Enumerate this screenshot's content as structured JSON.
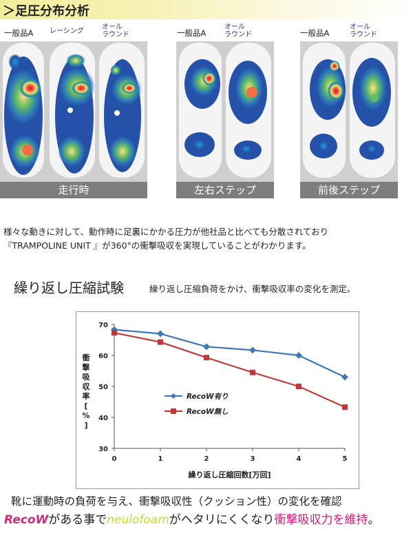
{
  "header": {
    "title": "＞足圧分布分析"
  },
  "panels": [
    {
      "labels": [
        "一般品A",
        "レーシング",
        "オール\nラウンド"
      ],
      "caption": "走行時"
    },
    {
      "labels": [
        "一般品A",
        "オール\nラウンド"
      ],
      "caption": "左右ステップ"
    },
    {
      "labels": [
        "一般品A",
        "オール\nラウンド"
      ],
      "caption": "前後ステップ"
    }
  ],
  "description": {
    "line1": "様々な動きに対して、動作時に足裏にかかる圧力が他社品と比べても分散されており",
    "line2": "『TRAMPOLINE UNIT 』が360°の衝撃吸収を実現していることがわかります。"
  },
  "test": {
    "title": "繰り返し圧縮試験",
    "description": "繰り返し圧縮負荷をかけ、衝撃吸収率の変化を測定。"
  },
  "chart_data": {
    "type": "line",
    "x": [
      0,
      1,
      2,
      3,
      4,
      5
    ],
    "xlabel": "繰り返し圧縮回数[万回]",
    "ylabel": "衝撃吸収率[%]",
    "ylim": [
      30,
      70
    ],
    "xlim": [
      0,
      5
    ],
    "yticks": [
      30,
      40,
      50,
      60,
      70
    ],
    "xticks": [
      0,
      1,
      2,
      3,
      4,
      5
    ],
    "grid": false,
    "legend_position": "lower-left",
    "series": [
      {
        "name": "RecoW有り",
        "values": [
          68.3,
          67.0,
          62.8,
          61.7,
          60.0,
          53.0
        ],
        "color": "#3f77ba",
        "marker": "diamond"
      },
      {
        "name": "RecoW無し",
        "values": [
          67.3,
          64.3,
          59.3,
          54.5,
          50.0,
          43.3
        ],
        "color": "#c0393b",
        "marker": "square"
      }
    ]
  },
  "conclusion": {
    "line1": "靴に運動時の負荷を与え、衝撃吸収性（クッション性）の変化を確認",
    "brand1": "RecoW",
    "mid1": "がある事で",
    "brand2": "neulofoam",
    "mid2": "がヘタリにくくなり",
    "highlight": "衝撃吸収力を維持",
    "end": "。"
  },
  "colors": {
    "accent_pink": "#ce2a7e",
    "accent_lime": "#c9d92a",
    "series_blue": "#3f77ba",
    "series_red": "#c0393b"
  }
}
